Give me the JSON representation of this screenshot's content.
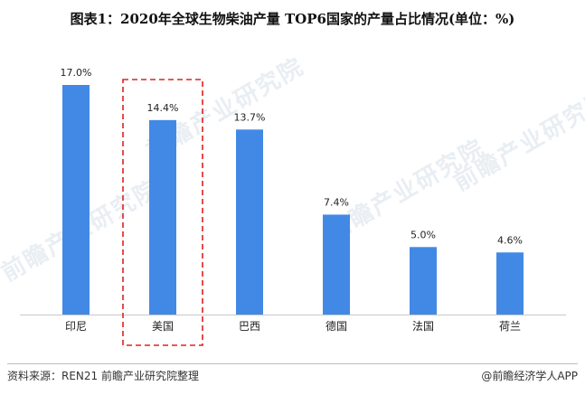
{
  "title": "图表1：2020年全球生物柴油产量 TOP6国家的产量占比情况(单位：%)",
  "footer": {
    "source": "资料来源：REN21 前瞻产业研究院整理",
    "brand": "@前瞻经济学人APP"
  },
  "watermark_text": "前瞻产业研究院",
  "colors": {
    "bar": "#4289e6",
    "highlight_border": "#e02020",
    "axis": "#c8c8c8"
  },
  "chart_data": {
    "type": "bar",
    "title": "图表1：2020年全球生物柴油产量 TOP6国家的产量占比情况(单位：%)",
    "categories": [
      "印尼",
      "美国",
      "巴西",
      "德国",
      "法国",
      "荷兰"
    ],
    "values": [
      17.0,
      14.4,
      13.7,
      7.4,
      5.0,
      4.6
    ],
    "data_labels": [
      "17.0%",
      "14.4%",
      "13.7%",
      "7.4%",
      "5.0%",
      "4.6%"
    ],
    "ylim": [
      0,
      17
    ],
    "highlight_category": "美国",
    "grid": false,
    "legend": "none"
  }
}
